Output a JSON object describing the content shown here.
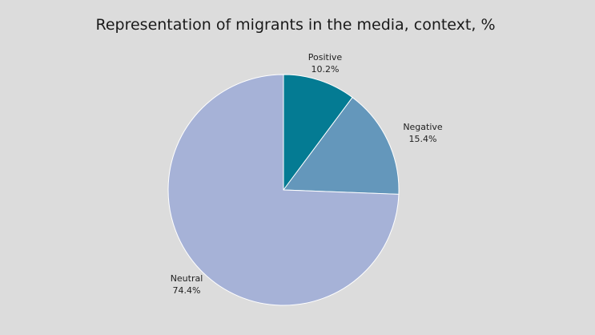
{
  "chart_data": {
    "type": "pie",
    "title": "Representation of migrants in the media, context, %",
    "slices": [
      {
        "name": "Positive",
        "value": 10.2,
        "label": "10.2%",
        "color": "#047b93"
      },
      {
        "name": "Negative",
        "value": 15.4,
        "label": "15.4%",
        "color": "#6497bb"
      },
      {
        "name": "Neutral",
        "value": 74.4,
        "label": "74.4%",
        "color": "#a6b2d7"
      }
    ],
    "start_angle": "12 o'clock",
    "direction": "clockwise",
    "legend": "none",
    "background": "#dcdcdc",
    "label_placement": "outside"
  }
}
